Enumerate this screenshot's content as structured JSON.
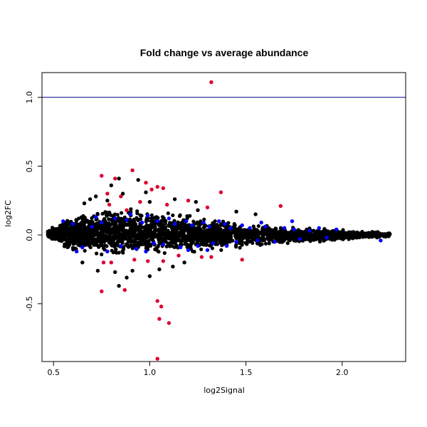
{
  "chart_data": {
    "type": "scatter",
    "title": "Fold change vs average abundance",
    "xlabel": "log2Signal",
    "ylabel": "log2FC",
    "xlim": [
      0.44,
      2.33
    ],
    "ylim": [
      -0.92,
      1.18
    ],
    "x_ticks": [
      "0.5",
      "1.0",
      "1.5",
      "2.0"
    ],
    "y_ticks": [
      "-0.5",
      "0.0",
      "0.5",
      "1.0"
    ],
    "reference_line": {
      "y": 1.0,
      "color": "#00008b"
    },
    "grid": false,
    "legend": "none",
    "colors": {
      "black": "#000000",
      "blue": "#0000ff",
      "red": "#dd0033"
    },
    "series": [
      {
        "color": "blue",
        "points": [
          [
            0.55,
            0.1
          ],
          [
            0.6,
            0.08
          ],
          [
            0.65,
            -0.09
          ],
          [
            0.7,
            0.06
          ],
          [
            0.72,
            0.13
          ],
          [
            0.78,
            -0.12
          ],
          [
            0.82,
            0.12
          ],
          [
            0.85,
            -0.08
          ],
          [
            0.88,
            0.11
          ],
          [
            0.9,
            0.15
          ],
          [
            0.93,
            -0.1
          ],
          [
            0.96,
            0.09
          ],
          [
            0.99,
            0.14
          ],
          [
            1.02,
            -0.06
          ],
          [
            1.04,
            0.1
          ],
          [
            1.07,
            -0.07
          ],
          [
            1.1,
            0.12
          ],
          [
            1.13,
            0.08
          ],
          [
            1.16,
            -0.09
          ],
          [
            1.19,
            0.1
          ],
          [
            1.22,
            0.07
          ],
          [
            1.25,
            -0.08
          ],
          [
            1.28,
            0.09
          ],
          [
            1.31,
            0.06
          ],
          [
            1.33,
            -0.06
          ],
          [
            1.36,
            0.1
          ],
          [
            1.39,
            0.08
          ],
          [
            1.42,
            0.05
          ],
          [
            1.45,
            -0.05
          ],
          [
            1.48,
            0.07
          ],
          [
            1.52,
            0.05
          ],
          [
            1.56,
            -0.04
          ],
          [
            1.6,
            0.06
          ],
          [
            1.65,
            -0.05
          ],
          [
            1.7,
            0.05
          ],
          [
            1.74,
            0.1
          ],
          [
            1.78,
            -0.03
          ],
          [
            1.83,
            0.03
          ],
          [
            1.88,
            0.05
          ],
          [
            1.92,
            -0.02
          ],
          [
            1.97,
            0.04
          ],
          [
            2.2,
            -0.04
          ],
          [
            0.62,
            -0.12
          ],
          [
            0.75,
            0.09
          ],
          [
            0.98,
            -0.12
          ],
          [
            1.2,
            -0.11
          ],
          [
            1.3,
            -0.11
          ],
          [
            1.4,
            -0.08
          ],
          [
            1.58,
            0.09
          ],
          [
            1.75,
            0.04
          ]
        ]
      },
      {
        "color": "red",
        "points": [
          [
            1.32,
            1.11
          ],
          [
            0.91,
            0.47
          ],
          [
            0.75,
            0.43
          ],
          [
            0.82,
            0.41
          ],
          [
            0.98,
            0.38
          ],
          [
            1.01,
            0.33
          ],
          [
            1.04,
            0.35
          ],
          [
            1.07,
            0.34
          ],
          [
            1.37,
            0.31
          ],
          [
            0.78,
            0.3
          ],
          [
            0.85,
            0.28
          ],
          [
            0.95,
            0.24
          ],
          [
            1.2,
            0.25
          ],
          [
            1.09,
            0.22
          ],
          [
            1.68,
            0.21
          ],
          [
            1.3,
            0.2
          ],
          [
            0.79,
            0.22
          ],
          [
            0.88,
            0.18
          ],
          [
            0.8,
            -0.2
          ],
          [
            0.76,
            -0.2
          ],
          [
            0.92,
            -0.18
          ],
          [
            0.99,
            -0.19
          ],
          [
            1.07,
            -0.19
          ],
          [
            1.15,
            -0.15
          ],
          [
            1.27,
            -0.16
          ],
          [
            1.32,
            -0.16
          ],
          [
            1.48,
            -0.18
          ],
          [
            0.75,
            -0.41
          ],
          [
            0.87,
            -0.4
          ],
          [
            1.04,
            -0.48
          ],
          [
            1.06,
            -0.52
          ],
          [
            1.05,
            -0.61
          ],
          [
            1.1,
            -0.64
          ],
          [
            1.04,
            -0.9
          ]
        ]
      },
      {
        "color": "black",
        "points": [
          [
            0.84,
            0.41
          ],
          [
            0.94,
            0.4
          ],
          [
            0.8,
            0.36
          ],
          [
            0.98,
            0.31
          ],
          [
            0.72,
            0.28
          ],
          [
            0.69,
            0.26
          ],
          [
            0.86,
            0.3
          ],
          [
            0.78,
            0.25
          ],
          [
            1.13,
            0.26
          ],
          [
            1.24,
            0.24
          ],
          [
            1.0,
            0.24
          ],
          [
            0.66,
            0.23
          ],
          [
            0.73,
            -0.26
          ],
          [
            0.82,
            -0.27
          ],
          [
            0.91,
            -0.26
          ],
          [
            0.84,
            -0.37
          ],
          [
            0.88,
            -0.31
          ],
          [
            1.05,
            -0.25
          ],
          [
            1.0,
            -0.3
          ],
          [
            1.12,
            -0.23
          ],
          [
            0.65,
            -0.2
          ],
          [
            1.18,
            -0.2
          ],
          [
            1.45,
            0.17
          ],
          [
            1.55,
            0.15
          ],
          [
            1.25,
            0.18
          ]
        ]
      }
    ],
    "cloud_envelope": {
      "x": [
        0.47,
        0.55,
        0.65,
        0.75,
        0.85,
        0.95,
        1.05,
        1.15,
        1.25,
        1.35,
        1.45,
        1.55,
        1.65,
        1.75,
        1.85,
        1.95,
        2.05,
        2.15,
        2.25
      ],
      "upper": [
        0.04,
        0.12,
        0.18,
        0.21,
        0.22,
        0.21,
        0.19,
        0.17,
        0.15,
        0.13,
        0.11,
        0.09,
        0.08,
        0.07,
        0.06,
        0.05,
        0.04,
        0.03,
        0.02
      ],
      "lower": [
        -0.02,
        -0.11,
        -0.16,
        -0.18,
        -0.19,
        -0.18,
        -0.17,
        -0.15,
        -0.14,
        -0.13,
        -0.11,
        -0.1,
        -0.08,
        -0.07,
        -0.06,
        -0.05,
        -0.04,
        -0.03,
        -0.02
      ]
    }
  }
}
